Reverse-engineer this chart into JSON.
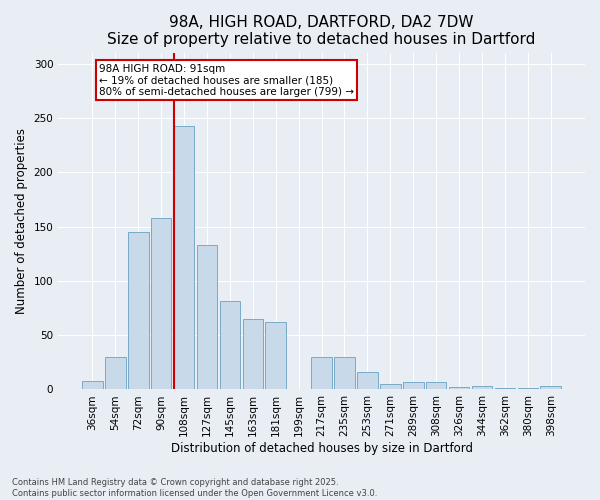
{
  "title": "98A, HIGH ROAD, DARTFORD, DA2 7DW",
  "subtitle": "Size of property relative to detached houses in Dartford",
  "xlabel": "Distribution of detached houses by size in Dartford",
  "ylabel": "Number of detached properties",
  "categories": [
    "36sqm",
    "54sqm",
    "72sqm",
    "90sqm",
    "108sqm",
    "127sqm",
    "145sqm",
    "163sqm",
    "181sqm",
    "199sqm",
    "217sqm",
    "235sqm",
    "253sqm",
    "271sqm",
    "289sqm",
    "308sqm",
    "326sqm",
    "344sqm",
    "362sqm",
    "380sqm",
    "398sqm"
  ],
  "values": [
    8,
    30,
    145,
    158,
    243,
    133,
    81,
    65,
    62,
    0,
    30,
    30,
    16,
    5,
    7,
    7,
    2,
    3,
    1,
    1,
    3
  ],
  "bar_color": "#c8daea",
  "bar_edge_color": "#7aaac8",
  "vline_color": "#cc0000",
  "annotation_text": "98A HIGH ROAD: 91sqm\n← 19% of detached houses are smaller (185)\n80% of semi-detached houses are larger (799) →",
  "annotation_box_color": "#ffffff",
  "annotation_border_color": "#cc0000",
  "ylim": [
    0,
    310
  ],
  "yticks": [
    0,
    50,
    100,
    150,
    200,
    250,
    300
  ],
  "background_color": "#e8eef4",
  "plot_bg_color": "#e8eef4",
  "footer_text": "Contains HM Land Registry data © Crown copyright and database right 2025.\nContains public sector information licensed under the Open Government Licence v3.0.",
  "title_fontsize": 11,
  "label_fontsize": 8.5,
  "tick_fontsize": 7.5,
  "annotation_fontsize": 7.5,
  "footer_fontsize": 6
}
